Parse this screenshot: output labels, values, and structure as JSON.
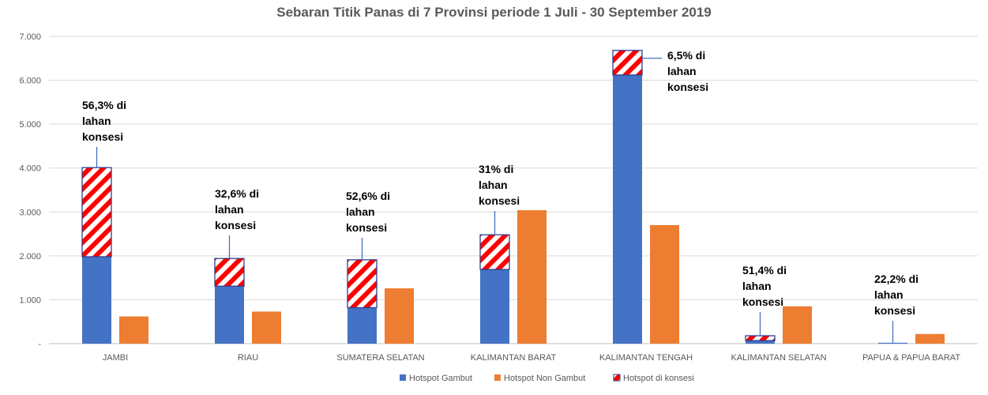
{
  "chart_data": {
    "type": "bar",
    "title": "Sebaran Titik Panas di 7 Provinsi periode 1 Juli - 30 September 2019",
    "xlabel": "",
    "ylabel": "",
    "ylim": [
      0,
      7000
    ],
    "ytick_values": [
      0,
      1000,
      2000,
      3000,
      4000,
      5000,
      6000,
      7000
    ],
    "ytick_labels": [
      "-",
      "1.000",
      "2.000",
      "3.000",
      "4.000",
      "5.000",
      "6.000",
      "7.000"
    ],
    "grid": true,
    "legend_position": "bottom",
    "categories": [
      "JAMBI",
      "RIAU",
      "SUMATERA SELATAN",
      "KALIMANTAN BARAT",
      "KALIMANTAN TENGAH",
      "KALIMANTAN SELATAN",
      "PAPUA & PAPUA BARAT"
    ],
    "series": [
      {
        "name": "Hotspot Gambut",
        "values": [
          4010,
          1940,
          1910,
          2480,
          6680,
          180,
          20
        ],
        "color": "#4472C4"
      },
      {
        "name": "Hotspot Non Gambut",
        "values": [
          620,
          730,
          1260,
          3040,
          2700,
          850,
          220
        ],
        "color": "#ED7D31"
      },
      {
        "name": "Hotspot di konsesi",
        "values": [
          2030,
          630,
          1090,
          790,
          560,
          110,
          0
        ],
        "color": "#FF0000",
        "pattern": "diagonal-stripes"
      }
    ],
    "annotations": [
      {
        "category": "JAMBI",
        "lines": [
          "56,3% di",
          "lahan",
          "konsesi"
        ]
      },
      {
        "category": "RIAU",
        "lines": [
          "32,6% di",
          "lahan",
          "konsesi"
        ]
      },
      {
        "category": "SUMATERA SELATAN",
        "lines": [
          "52,6% di",
          "lahan",
          "konsesi"
        ]
      },
      {
        "category": "KALIMANTAN BARAT",
        "lines": [
          "31% di",
          "lahan",
          "konsesi"
        ]
      },
      {
        "category": "KALIMANTAN TENGAH",
        "lines": [
          "6,5% di",
          "lahan",
          "konsesi"
        ]
      },
      {
        "category": "KALIMANTAN SELATAN",
        "lines": [
          "51,4% di",
          "lahan",
          "konsesi"
        ]
      },
      {
        "category": "PAPUA & PAPUA BARAT",
        "lines": [
          "22,2% di",
          "lahan",
          "konsesi"
        ]
      }
    ]
  }
}
